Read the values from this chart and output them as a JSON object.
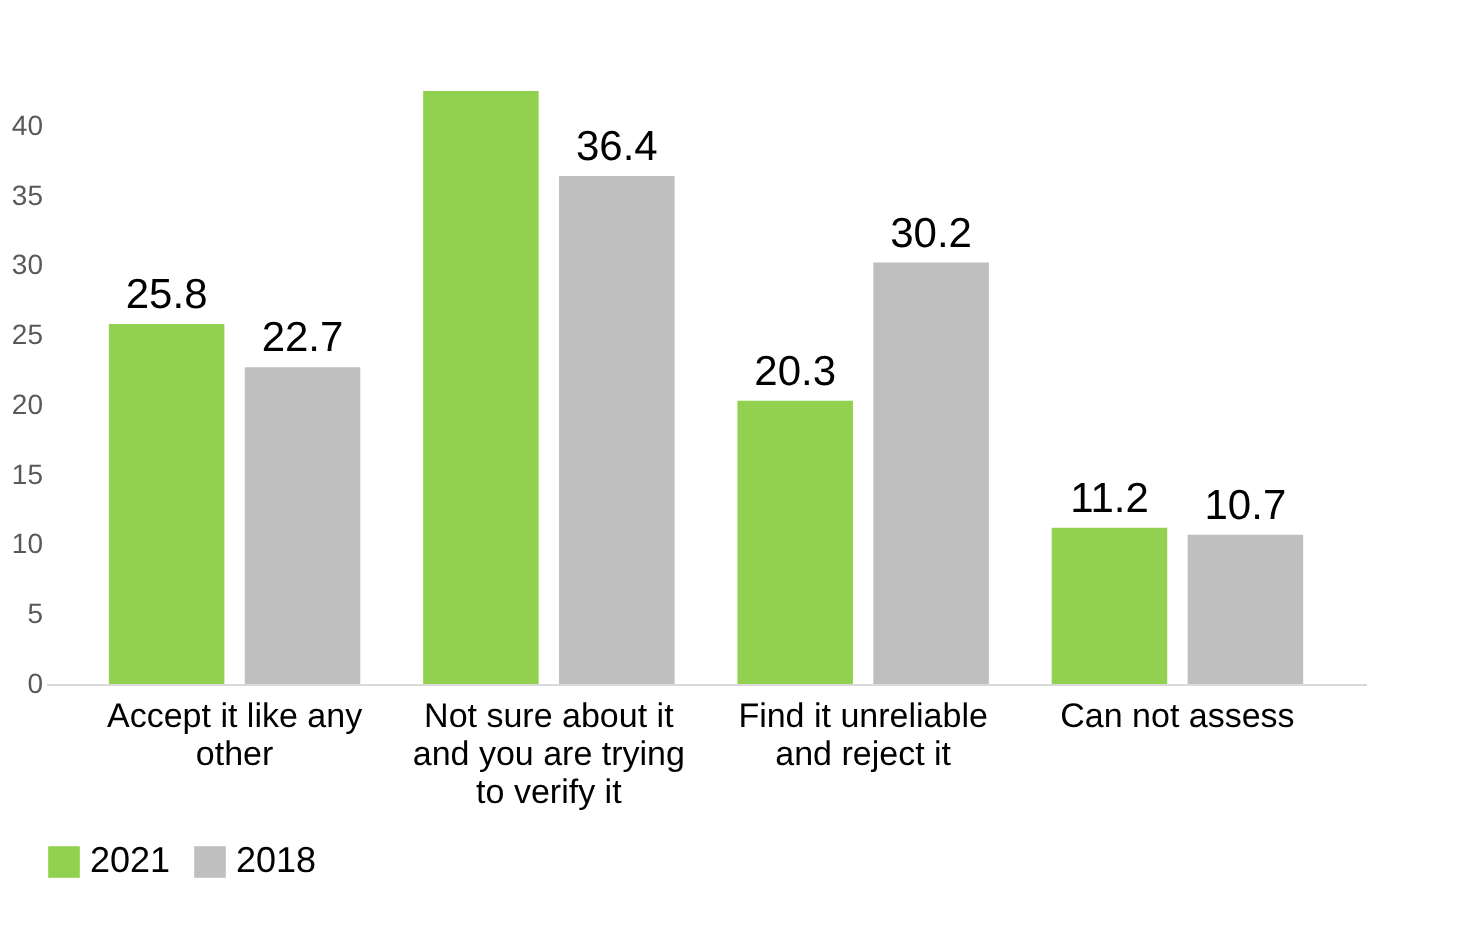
{
  "chart_data": {
    "type": "bar",
    "categories": [
      "Accept it like any other",
      "Not sure about it and you are trying to verify it",
      "Find it unreliable and reject it",
      "Can not assess"
    ],
    "series": [
      {
        "name": "2021",
        "color": "#92d050",
        "values": [
          25.8,
          42.5,
          20.3,
          11.2
        ],
        "value_labels": [
          "25.8",
          null,
          "20.3",
          "11.2"
        ]
      },
      {
        "name": "2018",
        "color": "#bfbfbf",
        "values": [
          22.7,
          36.4,
          30.2,
          10.7
        ],
        "value_labels": [
          "22.7",
          "36.4",
          "30.2",
          "10.7"
        ]
      }
    ],
    "ylim": [
      0,
      43
    ],
    "yticks": [
      0,
      5,
      10,
      15,
      20,
      25,
      30,
      35,
      40
    ],
    "grid": false,
    "legend": "bottom"
  }
}
